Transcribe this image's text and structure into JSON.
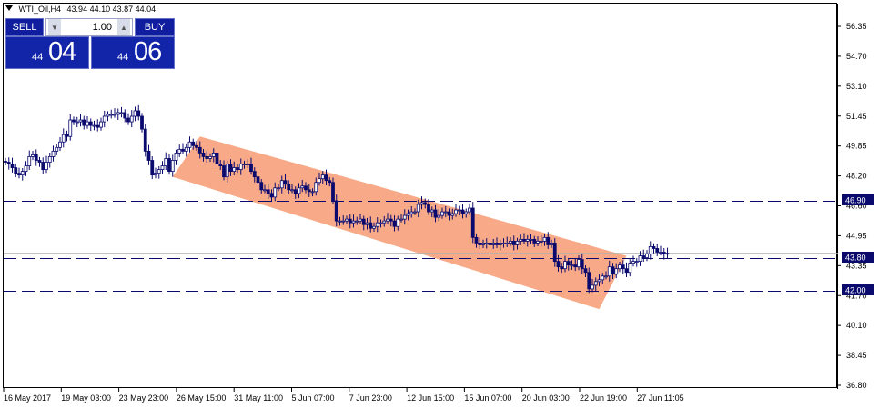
{
  "symbol_header": {
    "symbol": "WTI_Oil,H4",
    "ohlc": "43.94 44.10 43.87 44.04"
  },
  "trade_panel": {
    "sell_label": "SELL",
    "buy_label": "BUY",
    "lot_value": "1.00",
    "sell_price_small": "44",
    "sell_price_big": "04",
    "buy_price_small": "44",
    "buy_price_big": "06",
    "down_arrow": "▼",
    "up_arrow": "▲"
  },
  "price_axis": {
    "ticks": [
      "56.35",
      "54.70",
      "53.10",
      "51.45",
      "49.85",
      "48.20",
      "46.60",
      "44.95",
      "43.35",
      "41.70",
      "40.10",
      "38.45",
      "36.80"
    ]
  },
  "time_axis": {
    "labels": [
      "16 May 2017",
      "19 May 03:00",
      "23 May 23:00",
      "26 May 15:00",
      "31 May 11:00",
      "5 Jun 07:00",
      "7 Jun 23:00",
      "12 Jun 15:00",
      "15 Jun 07:00",
      "20 Jun 03:00",
      "22 Jun 19:00",
      "27 Jun 11:05"
    ]
  },
  "levels": [
    {
      "price": 46.9,
      "label": "46.90"
    },
    {
      "price": 43.8,
      "label": "43.80"
    },
    {
      "price": 42.0,
      "label": "42.00"
    }
  ],
  "bid_line": {
    "price": 44.04
  },
  "channel": {
    "color": "#f7a07a",
    "points": [
      {
        "t": 49,
        "p": 48.2
      },
      {
        "t": 57,
        "p": 50.4
      },
      {
        "t": 182,
        "p": 43.9
      },
      {
        "t": 174,
        "p": 41.0
      }
    ]
  },
  "colors": {
    "candle": "#0a0a6e",
    "level_line": "#0a0a6e",
    "tag_bg": "#0a0a6e",
    "panel_blue": "#0f1d9e"
  },
  "chart_data": {
    "type": "candlestick",
    "ylim": [
      36.8,
      57.0
    ],
    "closes": [
      49.0,
      48.9,
      48.7,
      48.4,
      48.3,
      48.5,
      48.8,
      49.3,
      49.4,
      49.1,
      49.0,
      48.6,
      49.0,
      49.3,
      49.6,
      49.8,
      50.1,
      50.5,
      50.4,
      51.3,
      51.2,
      51.2,
      51.3,
      51.0,
      51.2,
      51.0,
      51.0,
      50.9,
      51.2,
      51.5,
      51.6,
      51.6,
      51.6,
      51.7,
      51.7,
      51.4,
      51.2,
      51.5,
      51.8,
      51.5,
      50.8,
      49.6,
      49.1,
      48.3,
      48.4,
      48.6,
      48.8,
      49.2,
      48.5,
      49.1,
      49.5,
      49.7,
      49.6,
      49.8,
      50.1,
      49.9,
      49.8,
      49.5,
      49.3,
      49.2,
      49.3,
      49.5,
      48.9,
      48.8,
      48.2,
      48.9,
      48.5,
      48.7,
      48.6,
      48.9,
      48.9,
      48.9,
      48.5,
      48.2,
      47.9,
      47.5,
      47.5,
      47.3,
      47.1,
      47.6,
      47.6,
      48.0,
      47.8,
      47.5,
      47.5,
      47.3,
      47.6,
      47.7,
      47.5,
      47.4,
      47.4,
      47.9,
      48.1,
      48.3,
      48.0,
      47.9,
      46.9,
      45.8,
      45.8,
      45.8,
      45.9,
      45.7,
      45.8,
      45.8,
      45.9,
      45.6,
      45.7,
      45.4,
      45.5,
      45.7,
      45.7,
      45.8,
      45.9,
      45.8,
      45.5,
      45.9,
      45.9,
      46.1,
      46.2,
      46.3,
      46.3,
      46.7,
      46.8,
      46.7,
      46.3,
      46.4,
      46.0,
      46.1,
      46.3,
      46.3,
      46.1,
      46.2,
      46.4,
      46.4,
      46.2,
      46.3,
      46.5,
      44.9,
      44.6,
      44.5,
      44.6,
      44.6,
      44.5,
      44.6,
      44.5,
      44.6,
      44.6,
      44.6,
      44.7,
      44.5,
      44.7,
      44.8,
      44.7,
      44.8,
      44.8,
      44.6,
      44.7,
      44.7,
      44.9,
      44.5,
      44.6,
      43.6,
      43.3,
      43.2,
      43.6,
      43.4,
      43.4,
      43.3,
      43.7,
      43.2,
      43.0,
      42.1,
      42.3,
      42.5,
      42.6,
      42.8,
      42.8,
      43.3,
      42.9,
      43.2,
      43.4,
      43.2,
      43.0,
      43.5,
      43.6,
      43.6,
      43.9,
      43.8,
      44.0,
      44.4,
      44.3,
      44.1,
      44.1,
      44.0,
      44.04
    ]
  }
}
